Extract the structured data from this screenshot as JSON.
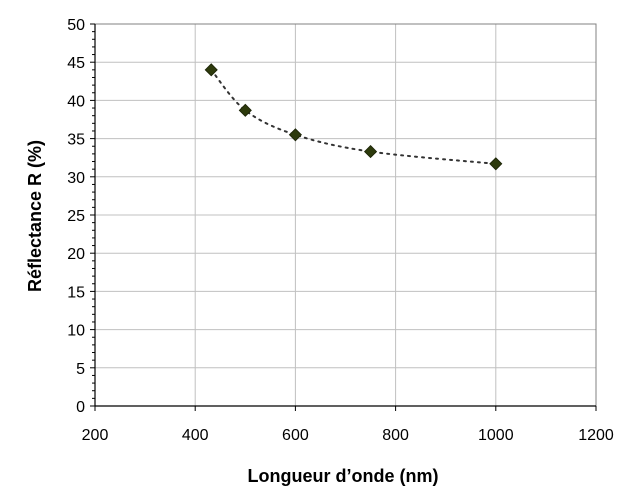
{
  "chart_data": {
    "type": "scatter",
    "title": "",
    "xlabel": "Longueur d’onde (nm)",
    "ylabel": "Réflectance R (%)",
    "xlim": [
      200,
      1200
    ],
    "ylim": [
      0,
      50
    ],
    "xticks": [
      200,
      400,
      600,
      800,
      1000,
      1200
    ],
    "yticks": [
      0,
      5,
      10,
      15,
      20,
      25,
      30,
      35,
      40,
      45,
      50
    ],
    "grid": true,
    "legend": "none",
    "series": [
      {
        "x": [
          432,
          500,
          600,
          750,
          1000
        ],
        "y": [
          44.0,
          38.7,
          35.5,
          33.3,
          31.7
        ],
        "marker": "diamond",
        "color": "#2d3a0c",
        "trendline": "dotted"
      }
    ]
  },
  "colors": {
    "marker": "#2d3a0c",
    "grid": "#c0c0c0",
    "trendline": "#333333"
  }
}
